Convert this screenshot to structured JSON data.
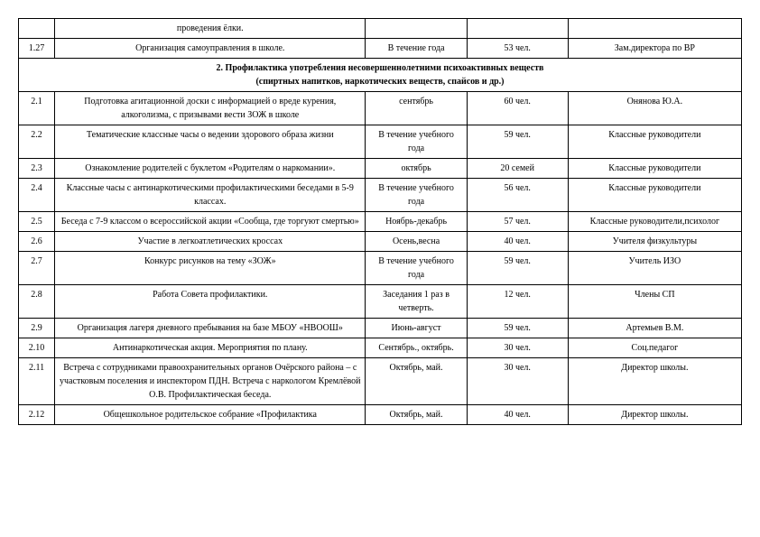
{
  "pre_rows": [
    {
      "num": "",
      "desc": "проведения ёлки.",
      "date": "",
      "count": "",
      "resp": ""
    },
    {
      "num": "1.27",
      "desc": "Организация самоуправления в школе.",
      "date": "В течение года",
      "count": "53 чел.",
      "resp": "Зам.директора по ВР"
    }
  ],
  "section": {
    "title_line1": "2.    Профилактика употребления несовершеннолетними психоактивных веществ",
    "title_line2": "(спиртных напитков, наркотических веществ, спайсов и др.)"
  },
  "rows": [
    {
      "num": "2.1",
      "desc": "Подготовка агитационной доски с информацией о вреде курения, алкоголизма, с призывами вести ЗОЖ в школе",
      "date": "сентябрь",
      "count": "60 чел.",
      "resp": "Онянова Ю.А."
    },
    {
      "num": "2.2",
      "desc": "Тематические классные часы о ведении здорового образа жизни",
      "date": "В течение учебного года",
      "count": "59 чел.",
      "resp": "Классные руководители"
    },
    {
      "num": "2.3",
      "desc": "Ознакомление родителей с буклетом «Родителям о наркомании».",
      "date": "октябрь",
      "count": "20 семей",
      "resp": "Классные руководители"
    },
    {
      "num": "2.4",
      "desc": "Классные часы с антинаркотическими профилактическими беседами в 5-9 классах.",
      "date": "В течение учебного года",
      "count": "56 чел.",
      "resp": "Классные руководители"
    },
    {
      "num": "2.5",
      "desc": "Беседа с 7-9 классом о всероссийской акции «Сообща, где торгуют смертью»",
      "date": "Ноябрь-декабрь",
      "count": "57 чел.",
      "resp": "Классные руководители,психолог"
    },
    {
      "num": "2.6",
      "desc": "Участие в легкоатлетических кроссах",
      "date": "Осень,весна",
      "count": "40 чел.",
      "resp": "Учителя физкультуры"
    },
    {
      "num": "2.7",
      "desc": "Конкурс рисунков на тему «ЗОЖ»",
      "date": "В течение учебного года",
      "count": "59 чел.",
      "resp": "Учитель ИЗО"
    },
    {
      "num": "2.8",
      "desc": "Работа Совета профилактики.",
      "date": "Заседания 1 раз в четверть.",
      "count": "12 чел.",
      "resp": "Члены СП"
    },
    {
      "num": "2.9",
      "desc": "Организация лагеря дневного пребывания на базе МБОУ «НВООШ»",
      "date": "Июнь-август",
      "count": "59 чел.",
      "resp": "Артемьев В.М."
    },
    {
      "num": "2.10",
      "desc": "Антинаркотическая акция. Мероприятия по плану.",
      "date": "Сентябрь., октябрь.",
      "count": "30 чел.",
      "resp": "Соц.педагог"
    },
    {
      "num": "2.11",
      "desc": "Встреча с сотрудниками правоохранительных органов Очёрского района – с участковым поселения и инспектором ПДН. Встреча с наркологом Кремлёвой О.В. Профилактическая беседа.",
      "date": "Октябрь, май.",
      "count": "30 чел.",
      "resp": "Директор школы."
    },
    {
      "num": "2.12",
      "desc": "Общешкольное родительское собрание «Профилактика",
      "date": "Октябрь, май.",
      "count": "40 чел.",
      "resp": "Директор школы."
    }
  ]
}
